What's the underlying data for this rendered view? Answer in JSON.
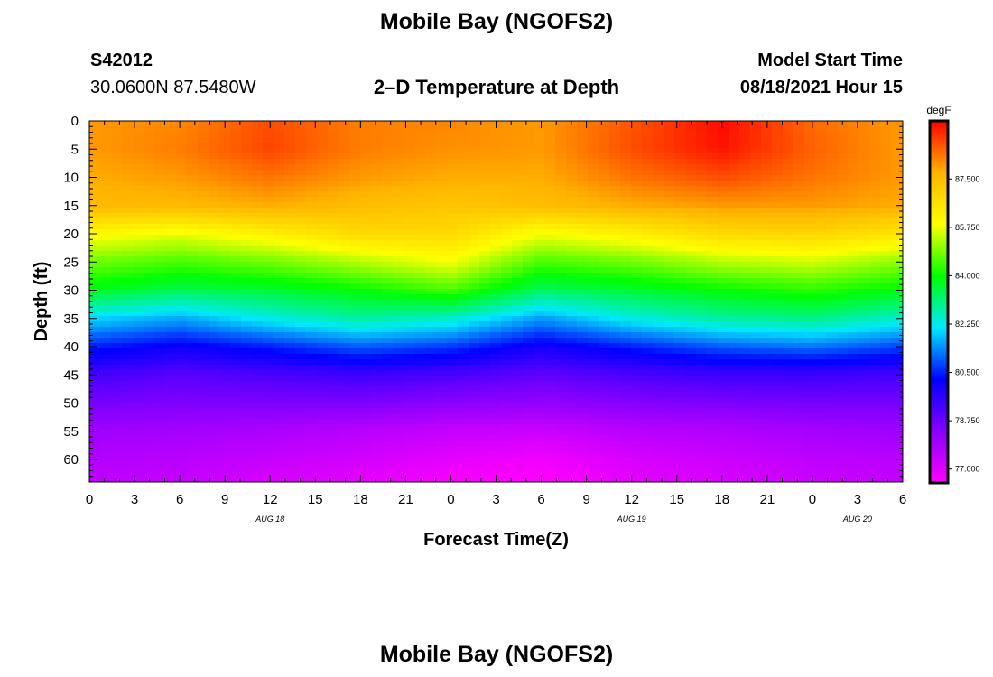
{
  "page": {
    "title_top": "Mobile Bay (NGOFS2)",
    "title_bottom": "Mobile Bay (NGOFS2)",
    "station_id": "S42012",
    "station_coords": "30.0600N  87.5480W",
    "plot_title": "2–D Temperature at Depth",
    "model_start_label": "Model Start Time",
    "model_start_value": "08/18/2021 Hour 15"
  },
  "chart_data": {
    "type": "heatmap",
    "title": "2–D Temperature at Depth",
    "xlabel": "Forecast Time(Z)",
    "ylabel": "Depth (ft)",
    "x_tick_labels": [
      "0",
      "3",
      "6",
      "9",
      "12",
      "15",
      "18",
      "21",
      "0",
      "3",
      "6",
      "9",
      "12",
      "15",
      "18",
      "21",
      "0",
      "3",
      "6"
    ],
    "x_date_labels": [
      {
        "label": "AUG 18",
        "tick_index": 4
      },
      {
        "label": "AUG 19",
        "tick_index": 12
      },
      {
        "label": "AUG 20",
        "tick_index": 17
      }
    ],
    "y_ticks": [
      0,
      5,
      10,
      15,
      20,
      25,
      30,
      35,
      40,
      45,
      50,
      55,
      60
    ],
    "ylim": [
      64,
      0
    ],
    "x_range_hours": [
      0,
      54
    ],
    "colorbar": {
      "unit": "degF",
      "tick_labels": [
        "87.500",
        "85.750",
        "84.000",
        "82.250",
        "80.500",
        "78.750",
        "77.000"
      ],
      "range": [
        76.5,
        89.6
      ],
      "colors": [
        "#ff00ff",
        "#8800ff",
        "#0000ff",
        "#00e8ff",
        "#00ff00",
        "#ffff00",
        "#ffb400",
        "#ff0000"
      ]
    },
    "field": {
      "x_hours": [
        0,
        6,
        12,
        18,
        24,
        30,
        36,
        42,
        48,
        54
      ],
      "depth_ft": [
        0,
        5,
        10,
        15,
        20,
        25,
        30,
        35,
        40,
        45,
        50,
        55,
        60,
        64
      ],
      "temperature_degF": [
        [
          88.0,
          88.2,
          88.8,
          88.3,
          88.2,
          88.0,
          88.7,
          89.5,
          88.5,
          88.0
        ],
        [
          88.0,
          88.3,
          88.9,
          88.3,
          88.1,
          88.0,
          88.8,
          89.4,
          88.6,
          88.0
        ],
        [
          87.8,
          88.0,
          88.4,
          88.0,
          87.8,
          87.8,
          88.4,
          88.8,
          88.4,
          88.0
        ],
        [
          87.6,
          87.6,
          87.8,
          87.5,
          87.3,
          87.5,
          87.8,
          88.0,
          88.0,
          87.8
        ],
        [
          86.0,
          85.7,
          86.2,
          86.8,
          86.8,
          85.8,
          86.2,
          86.8,
          86.9,
          86.5
        ],
        [
          84.8,
          84.5,
          84.8,
          85.3,
          85.8,
          84.5,
          84.8,
          85.3,
          85.5,
          85.0
        ],
        [
          83.8,
          83.4,
          83.6,
          84.0,
          84.5,
          83.3,
          83.6,
          84.0,
          84.3,
          83.9
        ],
        [
          82.0,
          81.6,
          82.3,
          82.8,
          82.5,
          81.5,
          82.3,
          82.8,
          83.0,
          82.5
        ],
        [
          80.5,
          80.1,
          80.5,
          81.0,
          80.7,
          80.0,
          80.5,
          81.0,
          81.2,
          80.8
        ],
        [
          79.3,
          79.0,
          79.2,
          79.4,
          79.2,
          78.9,
          79.2,
          79.4,
          79.4,
          79.3
        ],
        [
          78.6,
          78.5,
          78.5,
          78.5,
          78.3,
          78.2,
          78.4,
          78.5,
          78.6,
          78.6
        ],
        [
          78.0,
          77.9,
          77.8,
          77.6,
          77.4,
          77.3,
          77.6,
          77.7,
          77.9,
          78.0
        ],
        [
          77.7,
          77.6,
          77.4,
          77.2,
          76.9,
          76.7,
          77.1,
          77.3,
          77.5,
          77.6
        ],
        [
          77.5,
          77.4,
          77.1,
          76.9,
          76.6,
          76.5,
          76.9,
          77.1,
          77.3,
          77.4
        ]
      ]
    }
  }
}
